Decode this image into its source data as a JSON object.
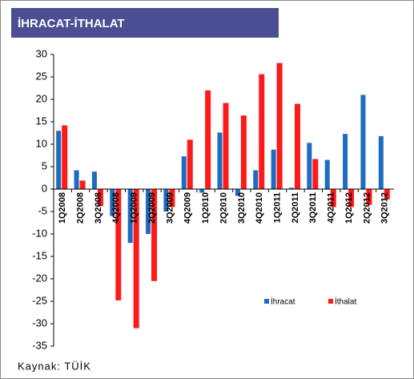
{
  "chart_data": {
    "type": "bar",
    "title": "İHRACAT-İTHALAT",
    "source": "Kaynak: TÜİK",
    "categories": [
      "1Q2008",
      "2Q2008",
      "3Q2008",
      "4Q2008",
      "1Q2009",
      "2Q2009",
      "3Q2009",
      "4Q2009",
      "1Q2010",
      "2Q2010",
      "3Q2010",
      "4Q2010",
      "1Q2011",
      "2Q2011",
      "3Q2011",
      "4Q2011",
      "1Q2012",
      "2Q2012",
      "3Q2012"
    ],
    "series": [
      {
        "name": "İhracat",
        "color": "#1f6bc1",
        "values": [
          13,
          4.2,
          3.9,
          -6,
          -12,
          -10,
          -5,
          7.3,
          -0.8,
          12.6,
          -1.5,
          4.2,
          8.8,
          0.3,
          10.3,
          6.5,
          12.3,
          21,
          11.8
        ]
      },
      {
        "name": "İthalat",
        "color": "#ff1a1a",
        "values": [
          14.2,
          1.9,
          -3.8,
          -24.8,
          -31,
          -20.5,
          -4,
          11,
          22,
          19.2,
          16.4,
          25.6,
          28.1,
          19,
          6.7,
          -4,
          -4,
          -3.5,
          -2.3
        ]
      }
    ],
    "ylim": [
      -35,
      30
    ],
    "yticks": [
      -35,
      -30,
      -25,
      -20,
      -15,
      -10,
      -5,
      0,
      5,
      10,
      15,
      20,
      25,
      30
    ]
  }
}
